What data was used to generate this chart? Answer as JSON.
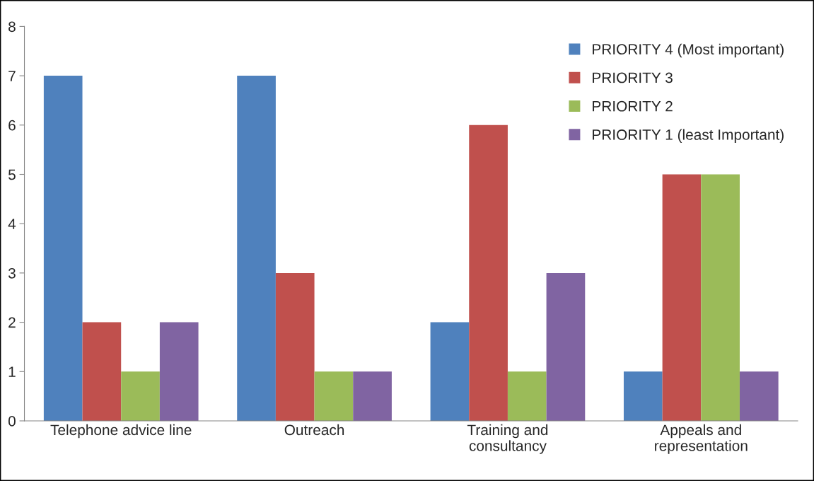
{
  "chart_data": {
    "type": "bar",
    "categories": [
      "Telephone advice line",
      "Outreach",
      "Training and\nconsultancy",
      "Appeals and\nrepresentation"
    ],
    "series": [
      {
        "name": "PRIORITY 4 (Most important)",
        "color": "#4f81bd",
        "values": [
          7,
          7,
          2,
          1
        ]
      },
      {
        "name": "PRIORITY 3",
        "color": "#c0504d",
        "values": [
          2,
          3,
          6,
          5
        ]
      },
      {
        "name": "PRIORITY 2",
        "color": "#9bbb59",
        "values": [
          1,
          1,
          1,
          5
        ]
      },
      {
        "name": "PRIORITY 1 (least Important)",
        "color": "#8064a2",
        "values": [
          2,
          1,
          3,
          1
        ]
      }
    ],
    "ylim": [
      0,
      8
    ],
    "yticks": [
      0,
      1,
      2,
      3,
      4,
      5,
      6,
      7,
      8
    ],
    "grid": false,
    "legend": "top right"
  }
}
